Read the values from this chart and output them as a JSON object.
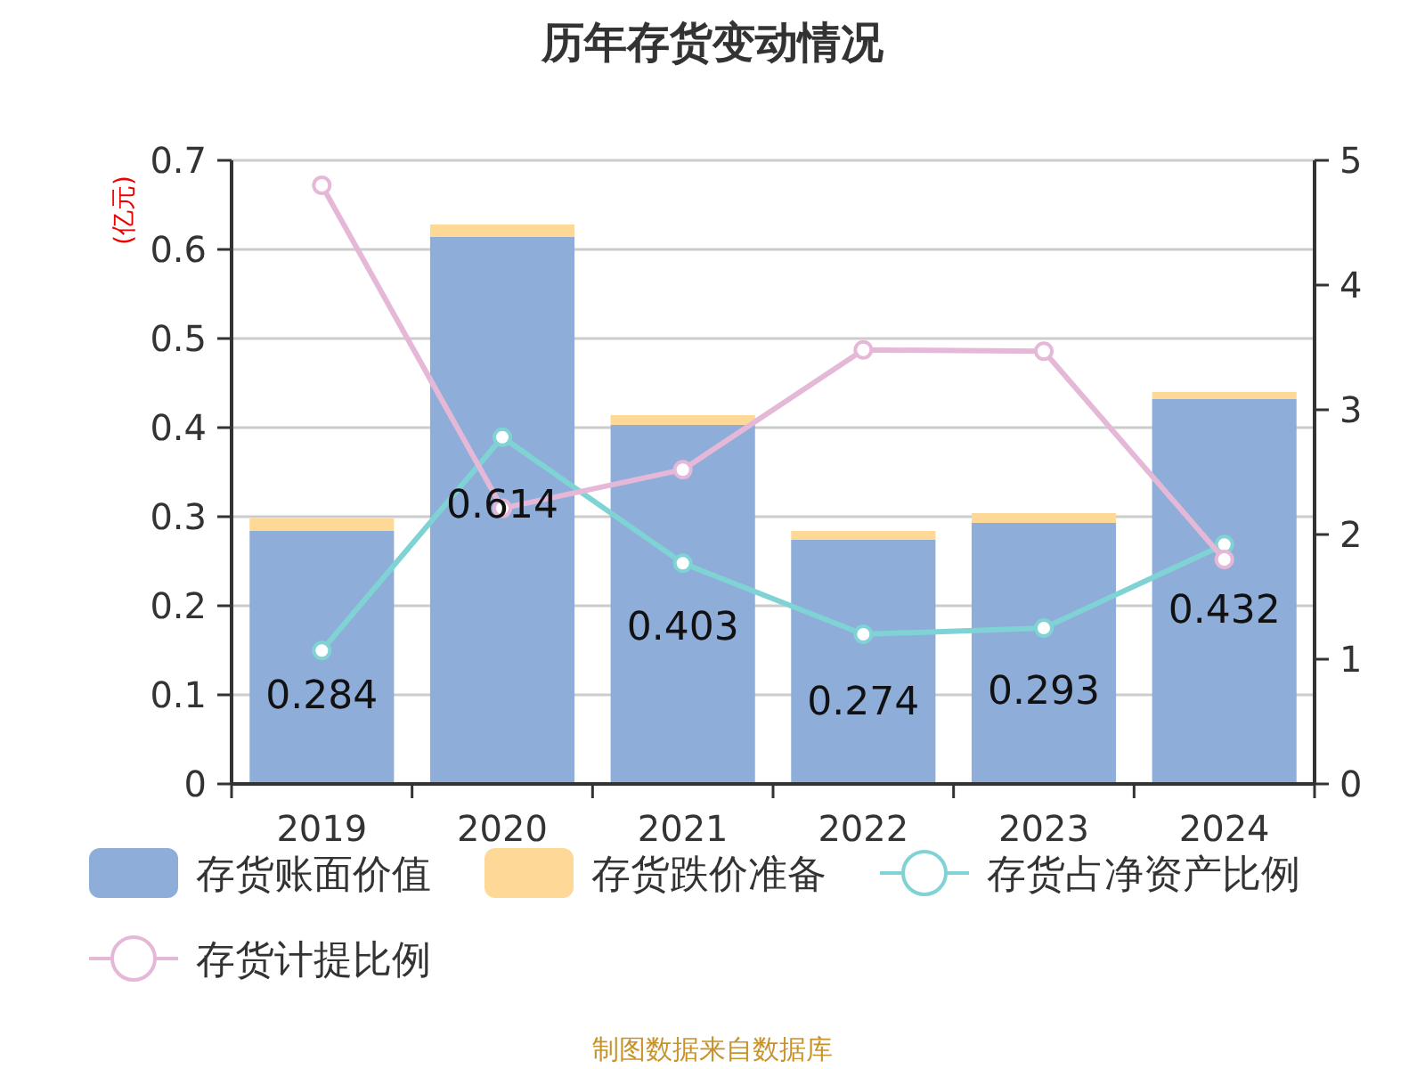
{
  "chart_data": {
    "type": "bar",
    "title": "历年存货变动情况",
    "ylabel": "(亿元)",
    "categories": [
      "2019",
      "2020",
      "2021",
      "2022",
      "2023",
      "2024"
    ],
    "stacked": true,
    "ylim": [
      0,
      0.7
    ],
    "yticks": [
      0,
      0.1,
      0.2,
      0.3,
      0.4,
      0.5,
      0.6,
      0.7
    ],
    "y2lim": [
      0,
      5
    ],
    "y2ticks": [
      0,
      1,
      2,
      3,
      4,
      5
    ],
    "grid": "y",
    "legend": "bottom",
    "marker": "circle",
    "series": [
      {
        "name": "存货账面价值",
        "color": "#8eadd9",
        "values": [
          0.284,
          0.614,
          0.403,
          0.274,
          0.293,
          0.432
        ],
        "value_labels": [
          "0.284",
          "0.614",
          "0.403",
          "0.274",
          "0.293",
          "0.432"
        ]
      },
      {
        "name": "存货跌价准备",
        "color": "#fdd897",
        "values": [
          0.014,
          0.014,
          0.011,
          0.01,
          0.011,
          0.008
        ]
      },
      {
        "name": "存货占净资产比例",
        "type": "line",
        "axis": "y2",
        "color": "#7fd3d4",
        "values": [
          1.07,
          2.78,
          1.77,
          1.2,
          1.25,
          1.92
        ]
      },
      {
        "name": "存货计提比例",
        "type": "line",
        "axis": "y2",
        "color": "#e6b8d8",
        "values": [
          4.8,
          2.21,
          2.52,
          3.48,
          3.47,
          1.8
        ]
      }
    ],
    "annotations": [
      "制图数据来自数据库"
    ]
  }
}
